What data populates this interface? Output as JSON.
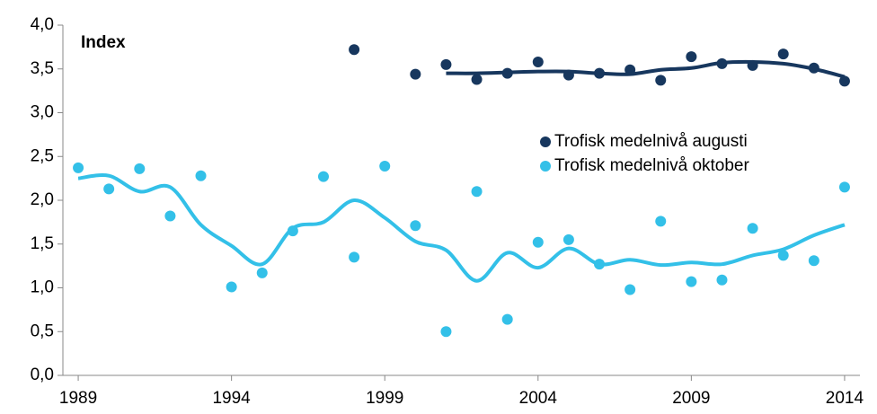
{
  "chart_data": {
    "type": "scatter",
    "ylabel": "Index",
    "xlim": [
      1988.5,
      2014.5
    ],
    "xticks": [
      1989,
      1994,
      1999,
      2004,
      2009,
      2014
    ],
    "ylim": [
      0,
      4
    ],
    "yticks": [
      {
        "value": 0,
        "label": "0,0"
      },
      {
        "value": 0.5,
        "label": "0,5"
      },
      {
        "value": 1,
        "label": "1,0"
      },
      {
        "value": 1.5,
        "label": "1,5"
      },
      {
        "value": 2,
        "label": "2,0"
      },
      {
        "value": 2.5,
        "label": "2,5"
      },
      {
        "value": 3,
        "label": "3,0"
      },
      {
        "value": 3.5,
        "label": "3,5"
      },
      {
        "value": 4,
        "label": "4,0"
      }
    ],
    "legend": "right",
    "series": [
      {
        "name": "Trofisk medelnivå augusti",
        "color": "#17375e",
        "x": [
          1998,
          2000,
          2001,
          2002,
          2003,
          2004,
          2005,
          2006,
          2007,
          2008,
          2009,
          2010,
          2011,
          2012,
          2013,
          2014
        ],
        "values": [
          3.72,
          3.44,
          3.55,
          3.38,
          3.45,
          3.58,
          3.43,
          3.45,
          3.49,
          3.37,
          3.64,
          3.56,
          3.54,
          3.67,
          3.51,
          3.36
        ]
      },
      {
        "name": "Trofisk medelnivå oktober",
        "color": "#33c0e8",
        "x": [
          1989,
          1990,
          1991,
          1992,
          1993,
          1994,
          1995,
          1996,
          1997,
          1998,
          1999,
          2000,
          2001,
          2002,
          2003,
          2004,
          2005,
          2006,
          2007,
          2008,
          2009,
          2010,
          2011,
          2012,
          2013,
          2014
        ],
        "values": [
          2.37,
          2.13,
          2.36,
          1.82,
          2.28,
          1.01,
          1.17,
          1.65,
          2.27,
          1.35,
          2.39,
          1.71,
          0.5,
          2.1,
          0.64,
          1.52,
          1.55,
          1.27,
          0.98,
          1.76,
          1.07,
          1.09,
          1.68,
          1.37,
          1.31,
          2.15
        ]
      }
    ],
    "trend": [
      {
        "color": "#17375e",
        "x": [
          2001,
          2002,
          2003,
          2004,
          2005,
          2006,
          2007,
          2008,
          2009,
          2010,
          2011,
          2012,
          2013,
          2014
        ],
        "values": [
          3.45,
          3.45,
          3.46,
          3.47,
          3.47,
          3.45,
          3.44,
          3.49,
          3.51,
          3.57,
          3.58,
          3.56,
          3.5,
          3.41
        ]
      },
      {
        "color": "#33c0e8",
        "x": [
          1989,
          1990,
          1991,
          1992,
          1993,
          1994,
          1995,
          1996,
          1997,
          1998,
          1999,
          2000,
          2001,
          2002,
          2003,
          2004,
          2005,
          2006,
          2007,
          2008,
          2009,
          2010,
          2011,
          2012,
          2013,
          2014
        ],
        "values": [
          2.25,
          2.28,
          2.1,
          2.15,
          1.72,
          1.48,
          1.27,
          1.68,
          1.75,
          2.0,
          1.8,
          1.53,
          1.43,
          1.08,
          1.4,
          1.23,
          1.45,
          1.27,
          1.32,
          1.26,
          1.29,
          1.27,
          1.37,
          1.44,
          1.6,
          1.72
        ]
      }
    ]
  }
}
